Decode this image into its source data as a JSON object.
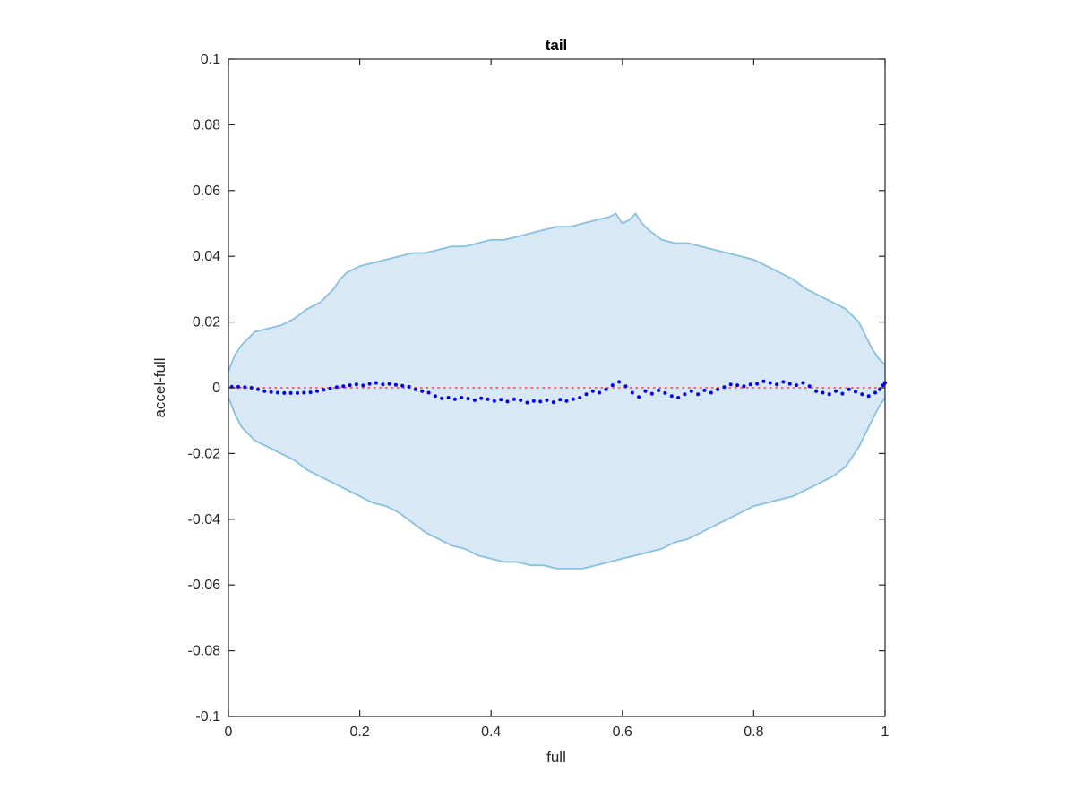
{
  "chart_data": {
    "type": "scatter",
    "title": "tail",
    "xlabel": "full",
    "ylabel": "accel-full",
    "xlim": [
      0,
      1
    ],
    "ylim": [
      -0.1,
      0.1
    ],
    "x_ticks": [
      0,
      0.2,
      0.4,
      0.6,
      0.8,
      1
    ],
    "x_tick_labels": [
      "0",
      "0.2",
      "0.4",
      "0.6",
      "0.8",
      "1"
    ],
    "y_ticks": [
      0.1,
      0.08,
      0.06,
      0.04,
      0.02,
      0,
      -0.02,
      -0.04,
      -0.06,
      -0.08,
      -0.1
    ],
    "y_tick_labels": [
      "0.1",
      "0.08",
      "0.06",
      "0.04",
      "0.02",
      "0",
      "-0.02",
      "-0.04",
      "-0.06",
      "-0.08",
      "-0.1"
    ],
    "grid": false,
    "reference_line": {
      "y": 0,
      "style": "dotted",
      "color": "#ff3b3b"
    },
    "band": {
      "fill": "#d9e8f5",
      "edge": "#89bfe0",
      "upper": [
        [
          0,
          0.005
        ],
        [
          0.01,
          0.01
        ],
        [
          0.02,
          0.013
        ],
        [
          0.03,
          0.015
        ],
        [
          0.04,
          0.017
        ],
        [
          0.06,
          0.018
        ],
        [
          0.08,
          0.019
        ],
        [
          0.1,
          0.021
        ],
        [
          0.12,
          0.024
        ],
        [
          0.14,
          0.026
        ],
        [
          0.16,
          0.03
        ],
        [
          0.17,
          0.033
        ],
        [
          0.18,
          0.035
        ],
        [
          0.2,
          0.037
        ],
        [
          0.22,
          0.038
        ],
        [
          0.24,
          0.039
        ],
        [
          0.26,
          0.04
        ],
        [
          0.28,
          0.041
        ],
        [
          0.3,
          0.041
        ],
        [
          0.32,
          0.042
        ],
        [
          0.34,
          0.043
        ],
        [
          0.36,
          0.043
        ],
        [
          0.38,
          0.044
        ],
        [
          0.4,
          0.045
        ],
        [
          0.42,
          0.045
        ],
        [
          0.44,
          0.046
        ],
        [
          0.46,
          0.047
        ],
        [
          0.48,
          0.048
        ],
        [
          0.5,
          0.049
        ],
        [
          0.52,
          0.049
        ],
        [
          0.54,
          0.05
        ],
        [
          0.56,
          0.051
        ],
        [
          0.58,
          0.052
        ],
        [
          0.59,
          0.053
        ],
        [
          0.6,
          0.05
        ],
        [
          0.61,
          0.051
        ],
        [
          0.62,
          0.053
        ],
        [
          0.63,
          0.05
        ],
        [
          0.64,
          0.048
        ],
        [
          0.66,
          0.045
        ],
        [
          0.68,
          0.044
        ],
        [
          0.7,
          0.044
        ],
        [
          0.72,
          0.043
        ],
        [
          0.74,
          0.042
        ],
        [
          0.76,
          0.041
        ],
        [
          0.78,
          0.04
        ],
        [
          0.8,
          0.039
        ],
        [
          0.82,
          0.037
        ],
        [
          0.84,
          0.035
        ],
        [
          0.86,
          0.033
        ],
        [
          0.88,
          0.03
        ],
        [
          0.9,
          0.028
        ],
        [
          0.92,
          0.026
        ],
        [
          0.94,
          0.024
        ],
        [
          0.95,
          0.022
        ],
        [
          0.96,
          0.02
        ],
        [
          0.97,
          0.016
        ],
        [
          0.98,
          0.012
        ],
        [
          0.99,
          0.009
        ],
        [
          1.0,
          0.007
        ]
      ],
      "lower": [
        [
          0,
          -0.003
        ],
        [
          0.01,
          -0.008
        ],
        [
          0.02,
          -0.012
        ],
        [
          0.03,
          -0.014
        ],
        [
          0.04,
          -0.016
        ],
        [
          0.06,
          -0.018
        ],
        [
          0.08,
          -0.02
        ],
        [
          0.1,
          -0.022
        ],
        [
          0.12,
          -0.025
        ],
        [
          0.14,
          -0.027
        ],
        [
          0.16,
          -0.029
        ],
        [
          0.18,
          -0.031
        ],
        [
          0.2,
          -0.033
        ],
        [
          0.22,
          -0.035
        ],
        [
          0.24,
          -0.036
        ],
        [
          0.26,
          -0.038
        ],
        [
          0.28,
          -0.041
        ],
        [
          0.3,
          -0.044
        ],
        [
          0.32,
          -0.046
        ],
        [
          0.34,
          -0.048
        ],
        [
          0.36,
          -0.049
        ],
        [
          0.38,
          -0.051
        ],
        [
          0.4,
          -0.052
        ],
        [
          0.42,
          -0.053
        ],
        [
          0.44,
          -0.053
        ],
        [
          0.46,
          -0.054
        ],
        [
          0.48,
          -0.054
        ],
        [
          0.5,
          -0.055
        ],
        [
          0.52,
          -0.055
        ],
        [
          0.54,
          -0.055
        ],
        [
          0.56,
          -0.054
        ],
        [
          0.58,
          -0.053
        ],
        [
          0.6,
          -0.052
        ],
        [
          0.62,
          -0.051
        ],
        [
          0.64,
          -0.05
        ],
        [
          0.66,
          -0.049
        ],
        [
          0.68,
          -0.047
        ],
        [
          0.7,
          -0.046
        ],
        [
          0.72,
          -0.044
        ],
        [
          0.74,
          -0.042
        ],
        [
          0.76,
          -0.04
        ],
        [
          0.78,
          -0.038
        ],
        [
          0.8,
          -0.036
        ],
        [
          0.82,
          -0.035
        ],
        [
          0.84,
          -0.034
        ],
        [
          0.86,
          -0.033
        ],
        [
          0.88,
          -0.031
        ],
        [
          0.9,
          -0.029
        ],
        [
          0.92,
          -0.027
        ],
        [
          0.94,
          -0.024
        ],
        [
          0.95,
          -0.021
        ],
        [
          0.96,
          -0.018
        ],
        [
          0.97,
          -0.014
        ],
        [
          0.98,
          -0.01
        ],
        [
          0.99,
          -0.006
        ],
        [
          1.0,
          -0.003
        ]
      ]
    },
    "series": [
      {
        "color": "#0000ee",
        "points": [
          [
            0.005,
            0.0003
          ],
          [
            0.015,
            0.0003
          ],
          [
            0.025,
            0.0002
          ],
          [
            0.035,
            0.0
          ],
          [
            0.045,
            -0.0005
          ],
          [
            0.055,
            -0.001
          ],
          [
            0.065,
            -0.0013
          ],
          [
            0.075,
            -0.0015
          ],
          [
            0.085,
            -0.0016
          ],
          [
            0.095,
            -0.0016
          ],
          [
            0.105,
            -0.0016
          ],
          [
            0.115,
            -0.0015
          ],
          [
            0.125,
            -0.0014
          ],
          [
            0.135,
            -0.001
          ],
          [
            0.145,
            -0.0006
          ],
          [
            0.155,
            -0.0002
          ],
          [
            0.165,
            0.0002
          ],
          [
            0.175,
            0.0005
          ],
          [
            0.185,
            0.0008
          ],
          [
            0.195,
            0.001
          ],
          [
            0.205,
            0.0007
          ],
          [
            0.215,
            0.0012
          ],
          [
            0.225,
            0.0015
          ],
          [
            0.235,
            0.001
          ],
          [
            0.245,
            0.0012
          ],
          [
            0.255,
            0.0009
          ],
          [
            0.265,
            0.0006
          ],
          [
            0.275,
            0.0003
          ],
          [
            0.285,
            -0.0005
          ],
          [
            0.295,
            -0.001
          ],
          [
            0.305,
            -0.0015
          ],
          [
            0.315,
            -0.0025
          ],
          [
            0.325,
            -0.0032
          ],
          [
            0.335,
            -0.003
          ],
          [
            0.345,
            -0.0035
          ],
          [
            0.355,
            -0.003
          ],
          [
            0.365,
            -0.0033
          ],
          [
            0.375,
            -0.0038
          ],
          [
            0.385,
            -0.0032
          ],
          [
            0.395,
            -0.0035
          ],
          [
            0.405,
            -0.004
          ],
          [
            0.415,
            -0.0036
          ],
          [
            0.425,
            -0.0042
          ],
          [
            0.435,
            -0.0035
          ],
          [
            0.445,
            -0.0038
          ],
          [
            0.455,
            -0.0045
          ],
          [
            0.465,
            -0.004
          ],
          [
            0.475,
            -0.0042
          ],
          [
            0.485,
            -0.0038
          ],
          [
            0.495,
            -0.0044
          ],
          [
            0.505,
            -0.0036
          ],
          [
            0.515,
            -0.004
          ],
          [
            0.525,
            -0.0035
          ],
          [
            0.535,
            -0.003
          ],
          [
            0.545,
            -0.002
          ],
          [
            0.555,
            -0.001
          ],
          [
            0.565,
            -0.0015
          ],
          [
            0.575,
            -0.0005
          ],
          [
            0.585,
            0.0008
          ],
          [
            0.595,
            0.0018
          ],
          [
            0.605,
            0.0005
          ],
          [
            0.615,
            -0.0015
          ],
          [
            0.625,
            -0.0028
          ],
          [
            0.635,
            -0.001
          ],
          [
            0.645,
            -0.0018
          ],
          [
            0.655,
            -0.0008
          ],
          [
            0.665,
            -0.0016
          ],
          [
            0.675,
            -0.0025
          ],
          [
            0.685,
            -0.003
          ],
          [
            0.695,
            -0.002
          ],
          [
            0.705,
            -0.001
          ],
          [
            0.715,
            -0.002
          ],
          [
            0.725,
            -0.0008
          ],
          [
            0.735,
            -0.0015
          ],
          [
            0.745,
            -0.0005
          ],
          [
            0.755,
            0.0002
          ],
          [
            0.765,
            0.001
          ],
          [
            0.775,
            0.0008
          ],
          [
            0.785,
            0.0005
          ],
          [
            0.795,
            0.001
          ],
          [
            0.805,
            0.0012
          ],
          [
            0.815,
            0.002
          ],
          [
            0.825,
            0.0015
          ],
          [
            0.835,
            0.001
          ],
          [
            0.845,
            0.0018
          ],
          [
            0.855,
            0.0012
          ],
          [
            0.865,
            0.0008
          ],
          [
            0.875,
            0.0015
          ],
          [
            0.885,
            0.0005
          ],
          [
            0.895,
            -0.001
          ],
          [
            0.905,
            -0.0015
          ],
          [
            0.915,
            -0.002
          ],
          [
            0.925,
            -0.001
          ],
          [
            0.935,
            -0.0018
          ],
          [
            0.945,
            -0.0005
          ],
          [
            0.955,
            -0.0012
          ],
          [
            0.965,
            -0.002
          ],
          [
            0.975,
            -0.0025
          ],
          [
            0.985,
            -0.0015
          ],
          [
            0.992,
            -0.0005
          ],
          [
            0.997,
            0.0008
          ],
          [
            1.0,
            0.0015
          ]
        ]
      }
    ]
  }
}
